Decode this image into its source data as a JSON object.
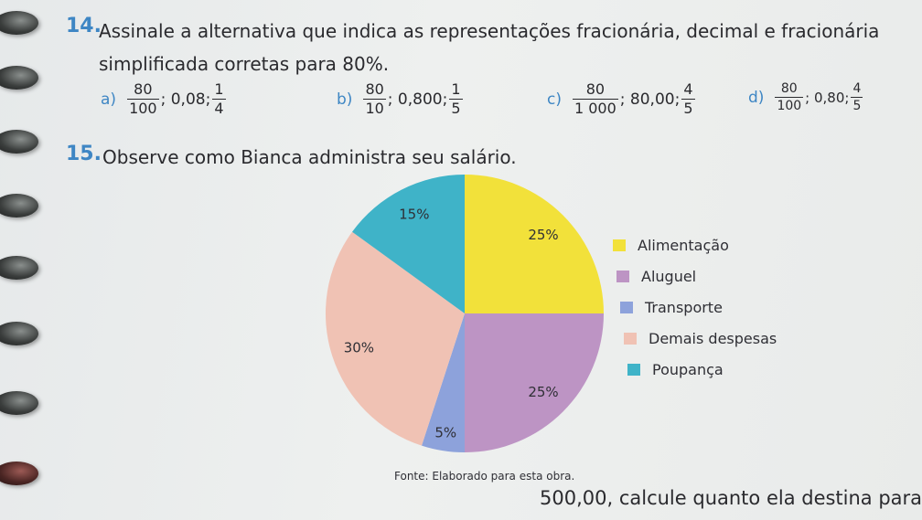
{
  "question14": {
    "number": "14.",
    "line1": "Assinale a alternativa que indica as representações fracionária, decimal e fracionária",
    "line2": "simplificada corretas para 80%.",
    "options": [
      {
        "letter": "a)",
        "f1_num": "80",
        "f1_den": "100",
        "decimal": "; 0,08; ",
        "f2_num": "1",
        "f2_den": "4"
      },
      {
        "letter": "b)",
        "f1_num": "80",
        "f1_den": "10",
        "decimal": "; 0,800; ",
        "f2_num": "1",
        "f2_den": "5"
      },
      {
        "letter": "c)",
        "f1_num": "80",
        "f1_den": "1 000",
        "decimal": "; 80,00; ",
        "f2_num": "4",
        "f2_den": "5"
      },
      {
        "letter": "d)",
        "f1_num": "80",
        "f1_den": "100",
        "decimal": "; 0,80; ",
        "f2_num": "4",
        "f2_den": "5"
      }
    ]
  },
  "question15": {
    "number": "15.",
    "text": "Observe como Bianca administra seu salário."
  },
  "chart_data": {
    "type": "pie",
    "title": "",
    "slices": [
      {
        "label": "Alimentação",
        "value": 25,
        "display": "25%",
        "color": "#f2e13a"
      },
      {
        "label": "Aluguel",
        "value": 25,
        "display": "25%",
        "color": "#bd94c4"
      },
      {
        "label": "Transporte",
        "value": 5,
        "display": "5%",
        "color": "#8da2db"
      },
      {
        "label": "Demais despesas",
        "value": 30,
        "display": "30%",
        "color": "#f0c2b4"
      },
      {
        "label": "Poupança",
        "value": 15,
        "display": "15%",
        "color": "#3fb3c8"
      }
    ],
    "legend_position": "right"
  },
  "source": "Fonte: Elaborado para esta obra.",
  "bottom_text": "500,00, calcule quanto ela destina para"
}
